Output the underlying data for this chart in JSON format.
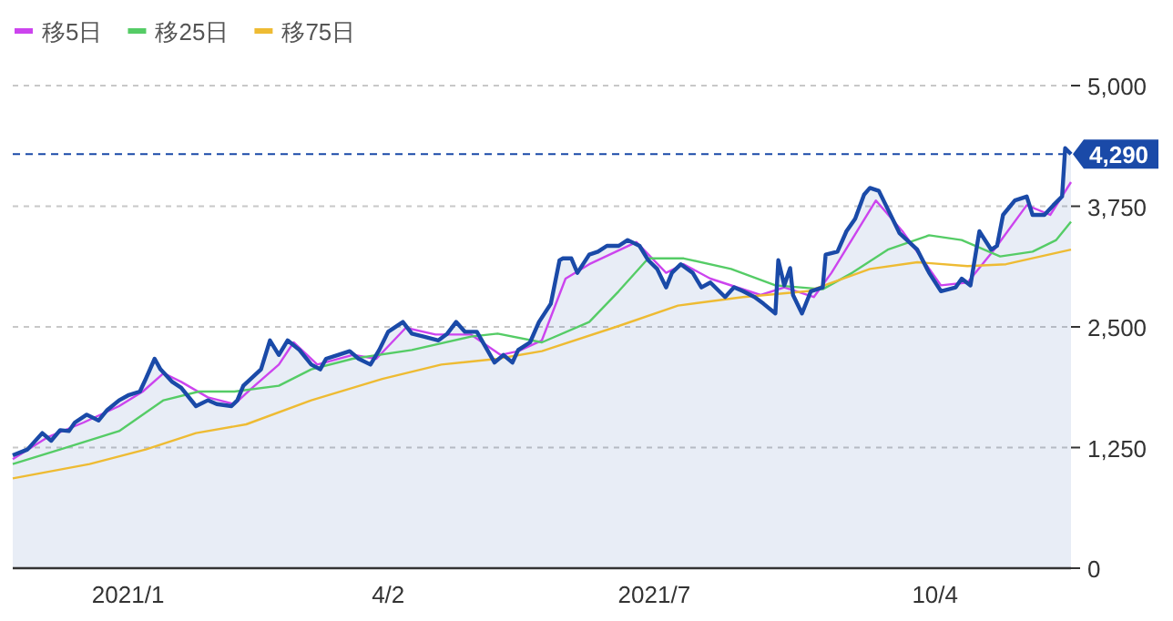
{
  "chart_data": {
    "type": "line",
    "legend": "top left",
    "grid": "y",
    "xlim": [
      "2020-11-26",
      "2021-11-19"
    ],
    "xticks": [
      {
        "value": "2021-01-04",
        "label": "2021/1"
      },
      {
        "value": "2021-04-02",
        "label": "4/2"
      },
      {
        "value": "2021-07-01",
        "label": "2021/7"
      },
      {
        "value": "2021-10-04",
        "label": "10/4"
      }
    ],
    "ylim": [
      0,
      5000
    ],
    "yticks": [
      0,
      {
        "value": 1250,
        "label": "1,250"
      },
      {
        "value": 2500,
        "label": "2,500"
      },
      {
        "value": 3750,
        "label": "3,750"
      },
      {
        "value": 5000,
        "label": "5,000"
      }
    ],
    "ref_lines": [
      {
        "axis": "y",
        "value": 4290,
        "label": "4,290",
        "color": "#1a4aa8",
        "line_style": "dashed"
      }
    ],
    "series": [
      {
        "type": "area",
        "color": "#1a4aa8",
        "x": [
          "2020-11-26",
          "2020-12-01",
          "2020-12-06",
          "2020-12-09",
          "2020-12-12",
          "2020-12-15",
          "2020-12-17",
          "2020-12-21",
          "2020-12-25",
          "2020-12-28",
          "2021-01-01",
          "2021-01-04",
          "2021-01-08",
          "2021-01-10",
          "2021-01-13",
          "2021-01-15",
          "2021-01-19",
          "2021-01-22",
          "2021-01-27",
          "2021-01-31",
          "2021-02-03",
          "2021-02-08",
          "2021-02-10",
          "2021-02-12",
          "2021-02-18",
          "2021-02-21",
          "2021-02-24",
          "2021-02-27",
          "2021-03-03",
          "2021-03-07",
          "2021-03-10",
          "2021-03-12",
          "2021-03-16",
          "2021-03-20",
          "2021-03-23",
          "2021-03-27",
          "2021-03-30",
          "2021-04-02",
          "2021-04-07",
          "2021-04-10",
          "2021-04-14",
          "2021-04-19",
          "2021-04-22",
          "2021-04-25",
          "2021-04-28",
          "2021-05-02",
          "2021-05-08",
          "2021-05-11",
          "2021-05-14",
          "2021-05-16",
          "2021-05-20",
          "2021-05-23",
          "2021-05-27",
          "2021-05-30",
          "2021-05-31",
          "2021-06-03",
          "2021-06-05",
          "2021-06-09",
          "2021-06-12",
          "2021-06-15",
          "2021-06-19",
          "2021-06-22",
          "2021-06-26",
          "2021-06-29",
          "2021-07-02",
          "2021-07-05",
          "2021-07-07",
          "2021-07-10",
          "2021-07-14",
          "2021-07-17",
          "2021-07-20",
          "2021-07-25",
          "2021-07-28",
          "2021-07-31",
          "2021-08-04",
          "2021-08-07",
          "2021-08-11",
          "2021-08-12",
          "2021-08-14",
          "2021-08-16",
          "2021-08-17",
          "2021-08-20",
          "2021-08-23",
          "2021-08-27",
          "2021-08-28",
          "2021-09-01",
          "2021-09-04",
          "2021-09-07",
          "2021-09-10",
          "2021-09-12",
          "2021-09-15",
          "2021-09-18",
          "2021-09-22",
          "2021-09-28",
          "2021-10-02",
          "2021-10-06",
          "2021-10-11",
          "2021-10-13",
          "2021-10-16",
          "2021-10-19",
          "2021-10-23",
          "2021-10-25",
          "2021-10-27",
          "2021-10-31",
          "2021-11-04",
          "2021-11-06",
          "2021-11-10",
          "2021-11-13",
          "2021-11-16",
          "2021-11-17",
          "2021-11-19"
        ],
        "values": [
          1170,
          1230,
          1400,
          1320,
          1430,
          1420,
          1510,
          1590,
          1530,
          1640,
          1740,
          1790,
          1830,
          1960,
          2170,
          2060,
          1930,
          1870,
          1680,
          1740,
          1700,
          1680,
          1740,
          1890,
          2060,
          2360,
          2210,
          2360,
          2260,
          2110,
          2060,
          2170,
          2210,
          2250,
          2170,
          2110,
          2260,
          2450,
          2550,
          2430,
          2400,
          2360,
          2430,
          2550,
          2450,
          2450,
          2130,
          2210,
          2130,
          2260,
          2340,
          2550,
          2740,
          3190,
          3210,
          3210,
          3060,
          3250,
          3280,
          3340,
          3340,
          3400,
          3340,
          3190,
          3100,
          2910,
          3060,
          3150,
          3060,
          2910,
          2960,
          2810,
          2910,
          2870,
          2810,
          2740,
          2640,
          3190,
          2930,
          3110,
          2830,
          2640,
          2870,
          2910,
          3250,
          3280,
          3490,
          3620,
          3870,
          3940,
          3910,
          3720,
          3470,
          3300,
          3060,
          2870,
          2910,
          3000,
          2930,
          3490,
          3300,
          3340,
          3660,
          3810,
          3850,
          3660,
          3660,
          3760,
          3850,
          4350,
          4290
        ]
      },
      {
        "name": "移5日",
        "color": "#cc44ee",
        "x": [
          "2020-11-26",
          "2020-12-08",
          "2020-12-20",
          "2021-01-01",
          "2021-01-09",
          "2021-01-16",
          "2021-01-22",
          "2021-01-31",
          "2021-02-09",
          "2021-02-15",
          "2021-02-24",
          "2021-03-01",
          "2021-03-09",
          "2021-03-21",
          "2021-03-29",
          "2021-04-08",
          "2021-04-18",
          "2021-04-30",
          "2021-05-10",
          "2021-05-16",
          "2021-05-24",
          "2021-06-01",
          "2021-06-09",
          "2021-06-25",
          "2021-07-05",
          "2021-07-11",
          "2021-07-20",
          "2021-08-06",
          "2021-08-14",
          "2021-08-24",
          "2021-08-30",
          "2021-09-14",
          "2021-09-23",
          "2021-10-06",
          "2021-10-15",
          "2021-10-24",
          "2021-11-04",
          "2021-11-12",
          "2021-11-19"
        ],
        "values": [
          1130,
          1360,
          1510,
          1680,
          1830,
          2020,
          1930,
          1770,
          1700,
          1870,
          2110,
          2340,
          2110,
          2210,
          2170,
          2490,
          2420,
          2420,
          2210,
          2250,
          2360,
          3000,
          3150,
          3380,
          3060,
          3150,
          3000,
          2830,
          2910,
          2810,
          3060,
          3810,
          3490,
          2930,
          2960,
          3300,
          3760,
          3660,
          4000
        ]
      },
      {
        "name": "移25日",
        "color": "#55cc66",
        "x": [
          "2020-11-26",
          "2020-12-12",
          "2021-01-01",
          "2021-01-16",
          "2021-01-28",
          "2021-02-09",
          "2021-02-24",
          "2021-03-07",
          "2021-03-21",
          "2021-04-10",
          "2021-04-30",
          "2021-05-09",
          "2021-05-24",
          "2021-06-09",
          "2021-06-19",
          "2021-06-29",
          "2021-07-11",
          "2021-07-27",
          "2021-08-11",
          "2021-08-27",
          "2021-09-06",
          "2021-09-18",
          "2021-10-02",
          "2021-10-13",
          "2021-10-26",
          "2021-11-06",
          "2021-11-14",
          "2021-11-19"
        ],
        "values": [
          1080,
          1230,
          1420,
          1740,
          1830,
          1830,
          1890,
          2060,
          2170,
          2260,
          2400,
          2430,
          2340,
          2550,
          2870,
          3210,
          3210,
          3100,
          2930,
          2890,
          3060,
          3300,
          3450,
          3400,
          3230,
          3280,
          3400,
          3590
        ]
      },
      {
        "name": "移75日",
        "color": "#eebb33",
        "x": [
          "2020-11-26",
          "2020-12-22",
          "2021-01-10",
          "2021-01-27",
          "2021-02-13",
          "2021-03-07",
          "2021-03-31",
          "2021-04-20",
          "2021-05-09",
          "2021-05-24",
          "2021-06-19",
          "2021-07-09",
          "2021-07-31",
          "2021-08-22",
          "2021-09-12",
          "2021-09-28",
          "2021-10-15",
          "2021-10-28",
          "2021-11-19"
        ],
        "values": [
          930,
          1080,
          1230,
          1400,
          1490,
          1740,
          1960,
          2110,
          2170,
          2250,
          2510,
          2720,
          2810,
          2870,
          3100,
          3170,
          3130,
          3150,
          3300
        ]
      }
    ]
  }
}
